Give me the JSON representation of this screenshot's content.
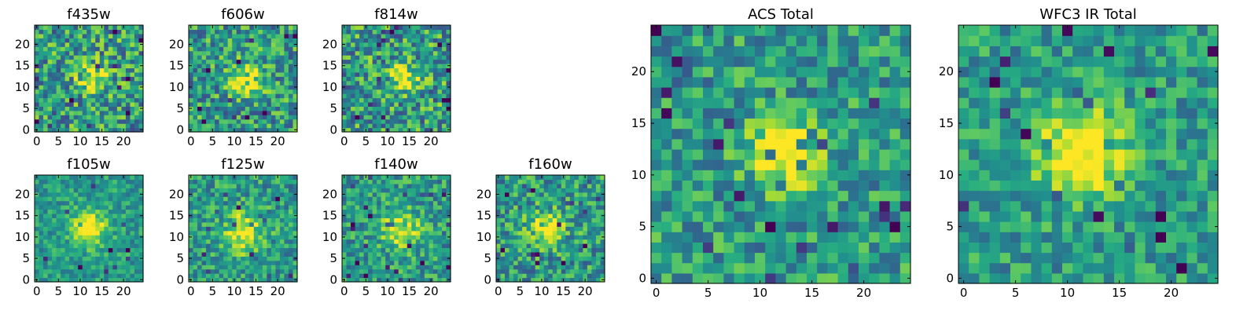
{
  "chart_data": [
    {
      "type": "heatmap",
      "title": "f435w",
      "xlim": [
        0,
        24
      ],
      "ylim": [
        0,
        24
      ],
      "xticks": [
        "0",
        "5",
        "10",
        "15",
        "20"
      ],
      "yticks": [
        "0",
        "5",
        "10",
        "15",
        "20"
      ],
      "colormap": "viridis",
      "noise_level": 0.55,
      "peak": {
        "x": 13,
        "y": 12,
        "sigma": 2.3,
        "amplitude": 0.45
      }
    },
    {
      "type": "heatmap",
      "title": "f606w",
      "xlim": [
        0,
        24
      ],
      "ylim": [
        0,
        24
      ],
      "xticks": [
        "0",
        "5",
        "10",
        "15",
        "20"
      ],
      "yticks": [
        "0",
        "5",
        "10",
        "15",
        "20"
      ],
      "colormap": "viridis",
      "noise_level": 0.5,
      "peak": {
        "x": 13,
        "y": 12,
        "sigma": 2.4,
        "amplitude": 0.5
      }
    },
    {
      "type": "heatmap",
      "title": "f814w",
      "xlim": [
        0,
        24
      ],
      "ylim": [
        0,
        24
      ],
      "xticks": [
        "0",
        "5",
        "10",
        "15",
        "20"
      ],
      "yticks": [
        "0",
        "5",
        "10",
        "15",
        "20"
      ],
      "colormap": "viridis",
      "noise_level": 0.55,
      "peak": {
        "x": 14,
        "y": 12,
        "sigma": 2.3,
        "amplitude": 0.4
      }
    },
    {
      "type": "heatmap",
      "title": "f105w",
      "xlim": [
        0,
        24
      ],
      "ylim": [
        0,
        24
      ],
      "xticks": [
        "0",
        "5",
        "10",
        "15",
        "20"
      ],
      "yticks": [
        "0",
        "5",
        "10",
        "15",
        "20"
      ],
      "colormap": "viridis",
      "noise_level": 0.3,
      "peak": {
        "x": 12,
        "y": 12,
        "sigma": 2.8,
        "amplitude": 0.55
      }
    },
    {
      "type": "heatmap",
      "title": "f125w",
      "xlim": [
        0,
        24
      ],
      "ylim": [
        0,
        24
      ],
      "xticks": [
        "0",
        "5",
        "10",
        "15",
        "20"
      ],
      "yticks": [
        "0",
        "5",
        "10",
        "15",
        "20"
      ],
      "colormap": "viridis",
      "noise_level": 0.4,
      "peak": {
        "x": 12,
        "y": 11,
        "sigma": 3.2,
        "amplitude": 0.45
      }
    },
    {
      "type": "heatmap",
      "title": "f140w",
      "xlim": [
        0,
        24
      ],
      "ylim": [
        0,
        24
      ],
      "xticks": [
        "0",
        "5",
        "10",
        "15",
        "20"
      ],
      "yticks": [
        "0",
        "5",
        "10",
        "15",
        "20"
      ],
      "colormap": "viridis",
      "noise_level": 0.4,
      "peak": {
        "x": 13,
        "y": 12,
        "sigma": 3.0,
        "amplitude": 0.45
      }
    },
    {
      "type": "heatmap",
      "title": "f160w",
      "xlim": [
        0,
        24
      ],
      "ylim": [
        0,
        24
      ],
      "xticks": [
        "0",
        "5",
        "10",
        "15",
        "20"
      ],
      "yticks": [
        "0",
        "5",
        "10",
        "15",
        "20"
      ],
      "colormap": "viridis",
      "noise_level": 0.45,
      "peak": {
        "x": 11,
        "y": 12,
        "sigma": 2.6,
        "amplitude": 0.5
      }
    },
    {
      "type": "heatmap",
      "title": "ACS Total",
      "xlim": [
        0,
        24
      ],
      "ylim": [
        0,
        24
      ],
      "xticks": [
        "0",
        "5",
        "10",
        "15",
        "20"
      ],
      "yticks": [
        "0",
        "5",
        "10",
        "15",
        "20"
      ],
      "colormap": "viridis",
      "noise_level": 0.4,
      "peak": {
        "x": 12.5,
        "y": 12,
        "sigma": 2.2,
        "amplitude": 0.6
      }
    },
    {
      "type": "heatmap",
      "title": "WFC3 IR Total",
      "xlim": [
        0,
        24
      ],
      "ylim": [
        0,
        24
      ],
      "xticks": [
        "0",
        "5",
        "10",
        "15",
        "20"
      ],
      "yticks": [
        "0",
        "5",
        "10",
        "15",
        "20"
      ],
      "colormap": "viridis",
      "noise_level": 0.35,
      "peak": {
        "x": 11.5,
        "y": 12.5,
        "sigma": 3.0,
        "amplitude": 0.6
      }
    }
  ]
}
